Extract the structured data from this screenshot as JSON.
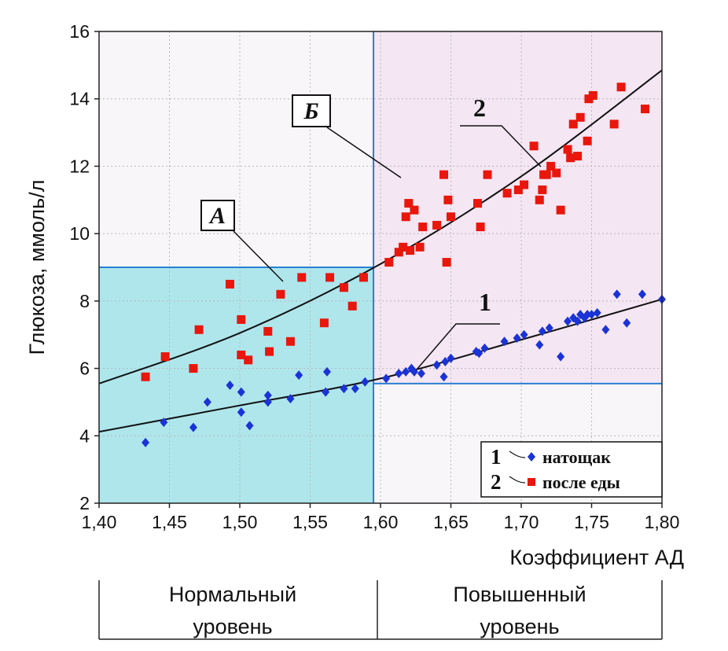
{
  "chart_data": {
    "type": "scatter",
    "xlabel": "Коэффициент АД",
    "ylabel": "Глюкоза, ммоль/л",
    "xlim": [
      1.4,
      1.8
    ],
    "ylim": [
      2,
      16
    ],
    "x_ticks": [
      "1,40",
      "1,45",
      "1,50",
      "1,55",
      "1,60",
      "1,65",
      "1,70",
      "1,75",
      "1,80"
    ],
    "y_ticks": [
      "2",
      "4",
      "6",
      "8",
      "10",
      "12",
      "14",
      "16"
    ],
    "grid": true,
    "regions": [
      {
        "label": "Нормальный уровень",
        "x_range": [
          1.4,
          1.595
        ],
        "y_max": 9.0,
        "color": "#aee6ec"
      },
      {
        "label": "Повышенный уровень",
        "x_range": [
          1.595,
          1.8
        ],
        "y_min": 5.55,
        "color": "#f4e6f2"
      }
    ],
    "threshold_lines": {
      "x": 1.595,
      "y_upper": 9.0,
      "y_lower": 5.55
    },
    "annotations": [
      {
        "text": "А",
        "boxed": true
      },
      {
        "text": "Б",
        "boxed": true
      },
      {
        "text": "1",
        "boxed": false
      },
      {
        "text": "2",
        "boxed": false
      }
    ],
    "bottom_labels": [
      {
        "line1": "Нормальный",
        "line2": "уровень"
      },
      {
        "line1": "Повышенный",
        "line2": "уровень"
      }
    ],
    "legend_position": "bottom-right",
    "series": [
      {
        "name": "натощак",
        "legend_number": "1",
        "marker": "diamond",
        "color": "#1a33d6",
        "fit": {
          "type": "quadratic",
          "x": [
            1.4,
            1.5,
            1.6,
            1.7,
            1.8
          ],
          "y": [
            4.12,
            4.9,
            5.7,
            6.85,
            8.05
          ]
        },
        "points": [
          [
            1.433,
            3.8
          ],
          [
            1.446,
            4.4
          ],
          [
            1.467,
            4.25
          ],
          [
            1.477,
            5.0
          ],
          [
            1.493,
            5.5
          ],
          [
            1.501,
            5.3
          ],
          [
            1.501,
            4.7
          ],
          [
            1.507,
            4.3
          ],
          [
            1.52,
            5.2
          ],
          [
            1.52,
            5.0
          ],
          [
            1.536,
            5.1
          ],
          [
            1.542,
            5.8
          ],
          [
            1.561,
            5.3
          ],
          [
            1.562,
            5.9
          ],
          [
            1.574,
            5.4
          ],
          [
            1.582,
            5.4
          ],
          [
            1.589,
            5.6
          ],
          [
            1.604,
            5.7
          ],
          [
            1.613,
            5.85
          ],
          [
            1.618,
            5.9
          ],
          [
            1.622,
            6.0
          ],
          [
            1.624,
            5.9
          ],
          [
            1.629,
            5.85
          ],
          [
            1.64,
            6.1
          ],
          [
            1.645,
            5.75
          ],
          [
            1.646,
            6.2
          ],
          [
            1.65,
            6.3
          ],
          [
            1.668,
            6.5
          ],
          [
            1.67,
            6.45
          ],
          [
            1.674,
            6.6
          ],
          [
            1.688,
            6.8
          ],
          [
            1.697,
            6.9
          ],
          [
            1.702,
            7.0
          ],
          [
            1.713,
            6.7
          ],
          [
            1.715,
            7.1
          ],
          [
            1.72,
            7.2
          ],
          [
            1.728,
            6.35
          ],
          [
            1.733,
            7.4
          ],
          [
            1.737,
            7.5
          ],
          [
            1.74,
            7.4
          ],
          [
            1.742,
            7.6
          ],
          [
            1.745,
            7.5
          ],
          [
            1.747,
            7.6
          ],
          [
            1.75,
            7.6
          ],
          [
            1.754,
            7.65
          ],
          [
            1.76,
            7.15
          ],
          [
            1.768,
            8.2
          ],
          [
            1.775,
            7.35
          ],
          [
            1.786,
            8.2
          ],
          [
            1.8,
            8.05
          ]
        ]
      },
      {
        "name": "после еды",
        "legend_number": "2",
        "marker": "square",
        "color": "#e8160c",
        "fit": {
          "type": "quadratic",
          "x": [
            1.4,
            1.5,
            1.6,
            1.7,
            1.8
          ],
          "y": [
            5.55,
            7.05,
            9.1,
            11.7,
            14.85
          ]
        },
        "points": [
          [
            1.433,
            5.75
          ],
          [
            1.447,
            6.35
          ],
          [
            1.467,
            6.0
          ],
          [
            1.471,
            7.15
          ],
          [
            1.493,
            8.5
          ],
          [
            1.501,
            7.45
          ],
          [
            1.501,
            6.4
          ],
          [
            1.506,
            6.25
          ],
          [
            1.52,
            7.1
          ],
          [
            1.521,
            6.5
          ],
          [
            1.529,
            8.2
          ],
          [
            1.536,
            6.8
          ],
          [
            1.544,
            8.7
          ],
          [
            1.56,
            7.35
          ],
          [
            1.564,
            8.7
          ],
          [
            1.574,
            8.4
          ],
          [
            1.58,
            7.85
          ],
          [
            1.588,
            8.7
          ],
          [
            1.606,
            9.15
          ],
          [
            1.613,
            9.45
          ],
          [
            1.616,
            9.6
          ],
          [
            1.618,
            10.5
          ],
          [
            1.62,
            10.9
          ],
          [
            1.621,
            9.5
          ],
          [
            1.624,
            10.7
          ],
          [
            1.628,
            9.6
          ],
          [
            1.63,
            10.2
          ],
          [
            1.64,
            10.25
          ],
          [
            1.645,
            11.75
          ],
          [
            1.647,
            9.15
          ],
          [
            1.648,
            11.0
          ],
          [
            1.65,
            10.5
          ],
          [
            1.669,
            10.9
          ],
          [
            1.671,
            10.2
          ],
          [
            1.676,
            11.75
          ],
          [
            1.69,
            11.2
          ],
          [
            1.698,
            11.3
          ],
          [
            1.702,
            11.45
          ],
          [
            1.709,
            12.6
          ],
          [
            1.713,
            11.0
          ],
          [
            1.715,
            11.3
          ],
          [
            1.716,
            11.75
          ],
          [
            1.718,
            11.75
          ],
          [
            1.721,
            12.0
          ],
          [
            1.725,
            11.8
          ],
          [
            1.728,
            10.7
          ],
          [
            1.733,
            12.5
          ],
          [
            1.735,
            12.25
          ],
          [
            1.737,
            13.25
          ],
          [
            1.74,
            12.3
          ],
          [
            1.742,
            13.45
          ],
          [
            1.747,
            12.75
          ],
          [
            1.748,
            14.0
          ],
          [
            1.751,
            14.1
          ],
          [
            1.766,
            13.25
          ],
          [
            1.771,
            14.35
          ],
          [
            1.788,
            13.7
          ]
        ]
      }
    ]
  }
}
